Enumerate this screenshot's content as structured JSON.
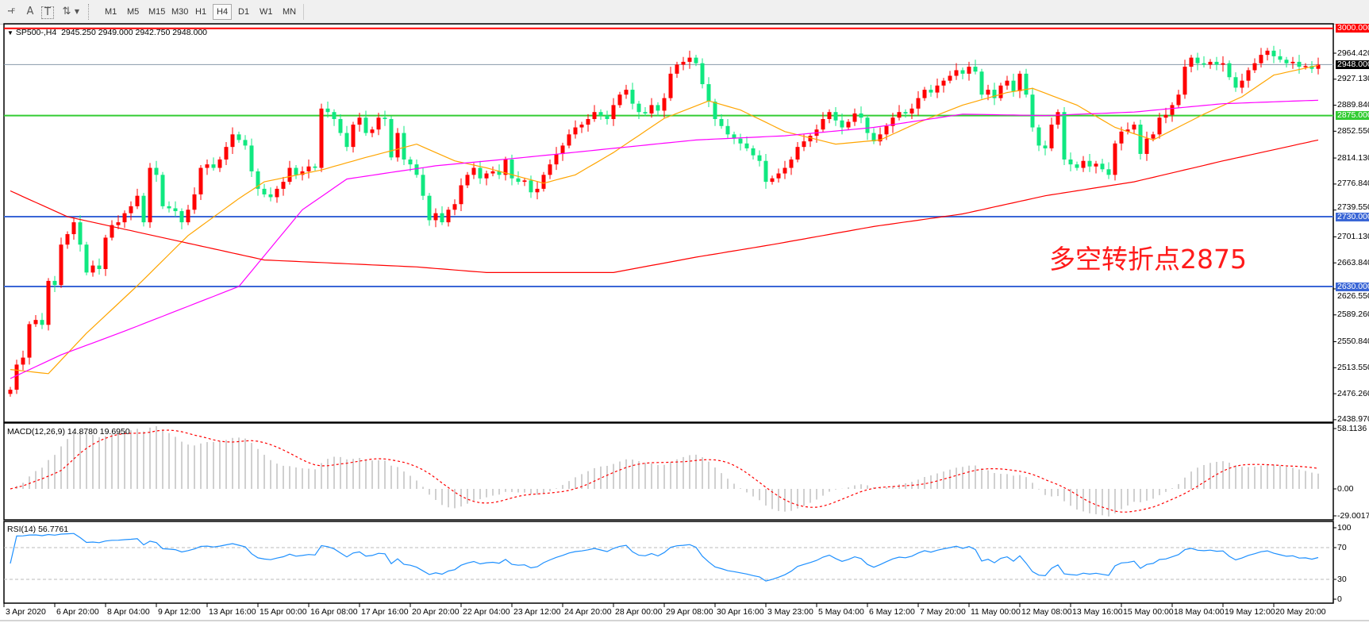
{
  "toolbar": {
    "icons": [
      "grid-fibo-icon",
      "text-icon",
      "text-label-icon",
      "arrows-icon"
    ],
    "text_icon_glyph": "A",
    "text_label_glyph": "T",
    "timeframes": [
      "M1",
      "M5",
      "M15",
      "M30",
      "H1",
      "H4",
      "D1",
      "W1",
      "MN"
    ],
    "selected_timeframe": "H4"
  },
  "chart": {
    "symbol": "SP500-,H4",
    "ohlc_readout": "2945.250 2949.000 2942.750 2948.000",
    "annotation": "多空转折点2875",
    "annotation_color": "#ff1a1a",
    "bull_color": "#ff0000",
    "bear_color": "#10e880"
  },
  "chart_data": {
    "type": "candlestick",
    "timeframe": "H4",
    "x_tick_labels": [
      "3 Apr 2020",
      "6 Apr 20:00",
      "8 Apr 04:00",
      "9 Apr 12:00",
      "13 Apr 16:00",
      "15 Apr 00:00",
      "16 Apr 08:00",
      "17 Apr 16:00",
      "20 Apr 20:00",
      "22 Apr 04:00",
      "23 Apr 12:00",
      "24 Apr 20:00",
      "28 Apr 00:00",
      "29 Apr 08:00",
      "30 Apr 16:00",
      "3 May 23:00",
      "5 May 04:00",
      "6 May 12:00",
      "7 May 20:00",
      "11 May 00:00",
      "12 May 08:00",
      "13 May 16:00",
      "15 May 00:00",
      "18 May 04:00",
      "19 May 12:00",
      "20 May 20:00"
    ],
    "bars_per_x_tick": 8,
    "y_tick_labels": [
      "2964.420",
      "2927.130",
      "2889.840",
      "2852.550",
      "2814.130",
      "2776.840",
      "2739.550",
      "2701.130",
      "2663.840",
      "2626.550",
      "2589.260",
      "2550.840",
      "2513.550",
      "2476.260",
      "2438.970"
    ],
    "ylim": [
      2438.97,
      3000
    ],
    "first_open": 2476,
    "close": [
      2482,
      2518,
      2528,
      2576,
      2582,
      2575,
      2638,
      2632,
      2690,
      2705,
      2722,
      2690,
      2650,
      2660,
      2655,
      2700,
      2718,
      2722,
      2735,
      2745,
      2760,
      2722,
      2800,
      2790,
      2745,
      2742,
      2738,
      2722,
      2740,
      2762,
      2800,
      2805,
      2800,
      2812,
      2830,
      2848,
      2840,
      2832,
      2795,
      2770,
      2762,
      2758,
      2770,
      2780,
      2800,
      2790,
      2795,
      2802,
      2800,
      2885,
      2880,
      2870,
      2850,
      2830,
      2862,
      2872,
      2850,
      2855,
      2872,
      2870,
      2815,
      2850,
      2812,
      2805,
      2790,
      2760,
      2725,
      2735,
      2722,
      2740,
      2748,
      2775,
      2790,
      2800,
      2785,
      2792,
      2795,
      2790,
      2812,
      2785,
      2780,
      2782,
      2765,
      2770,
      2790,
      2805,
      2820,
      2832,
      2848,
      2858,
      2862,
      2870,
      2880,
      2875,
      2870,
      2890,
      2905,
      2912,
      2892,
      2880,
      2878,
      2890,
      2882,
      2900,
      2935,
      2948,
      2952,
      2958,
      2950,
      2920,
      2895,
      2870,
      2860,
      2848,
      2842,
      2835,
      2828,
      2818,
      2810,
      2780,
      2785,
      2792,
      2800,
      2812,
      2830,
      2838,
      2846,
      2855,
      2870,
      2880,
      2868,
      2858,
      2866,
      2878,
      2872,
      2850,
      2838,
      2848,
      2860,
      2872,
      2880,
      2878,
      2885,
      2900,
      2912,
      2908,
      2918,
      2925,
      2932,
      2940,
      2935,
      2945,
      2938,
      2905,
      2912,
      2900,
      2918,
      2925,
      2910,
      2935,
      2905,
      2858,
      2832,
      2828,
      2862,
      2880,
      2812,
      2805,
      2800,
      2810,
      2802,
      2806,
      2798,
      2790,
      2835,
      2852,
      2855,
      2862,
      2820,
      2842,
      2848,
      2872,
      2876,
      2890,
      2905,
      2945,
      2958,
      2950,
      2948,
      2952,
      2948,
      2950,
      2930,
      2915,
      2925,
      2940,
      2950,
      2962,
      2968,
      2960,
      2955,
      2950,
      2952,
      2945,
      2946,
      2942,
      2948
    ],
    "moving_averages": [
      {
        "color": "#ffa500",
        "points": [
          [
            0,
            2511
          ],
          [
            6,
            2505
          ],
          [
            12,
            2563
          ],
          [
            20,
            2631
          ],
          [
            28,
            2703
          ],
          [
            36,
            2756
          ],
          [
            40,
            2780
          ],
          [
            49,
            2797
          ],
          [
            56,
            2815
          ],
          [
            64,
            2834
          ],
          [
            70,
            2810
          ],
          [
            75,
            2800
          ],
          [
            84,
            2778
          ],
          [
            89,
            2790
          ],
          [
            95,
            2822
          ],
          [
            103,
            2871
          ],
          [
            110,
            2896
          ],
          [
            115,
            2883
          ],
          [
            122,
            2852
          ],
          [
            130,
            2834
          ],
          [
            137,
            2840
          ],
          [
            143,
            2865
          ],
          [
            150,
            2890
          ],
          [
            157,
            2908
          ],
          [
            161,
            2914
          ],
          [
            168,
            2890
          ],
          [
            174,
            2858
          ],
          [
            180,
            2840
          ],
          [
            188,
            2877
          ],
          [
            194,
            2902
          ],
          [
            199,
            2933
          ],
          [
            206,
            2947
          ]
        ]
      },
      {
        "color": "#ff00ff",
        "points": [
          [
            0,
            2498
          ],
          [
            8,
            2532
          ],
          [
            18,
            2566
          ],
          [
            36,
            2630
          ],
          [
            46,
            2740
          ],
          [
            53,
            2784
          ],
          [
            67,
            2803
          ],
          [
            81,
            2815
          ],
          [
            95,
            2828
          ],
          [
            108,
            2840
          ],
          [
            122,
            2846
          ],
          [
            136,
            2858
          ],
          [
            150,
            2877
          ],
          [
            163,
            2875
          ],
          [
            177,
            2880
          ],
          [
            191,
            2892
          ],
          [
            206,
            2897
          ]
        ]
      },
      {
        "color": "#ff0000",
        "points": [
          [
            0,
            2767
          ],
          [
            9,
            2730
          ],
          [
            40,
            2668
          ],
          [
            64,
            2658
          ],
          [
            75,
            2650
          ],
          [
            95,
            2650
          ],
          [
            108,
            2672
          ],
          [
            120,
            2690
          ],
          [
            136,
            2716
          ],
          [
            150,
            2734
          ],
          [
            163,
            2760
          ],
          [
            177,
            2780
          ],
          [
            191,
            2810
          ],
          [
            206,
            2840
          ]
        ]
      }
    ],
    "horizontal_lines": [
      {
        "price": 3000,
        "label": "3000.000",
        "color": "#ff0000"
      },
      {
        "price": 2875,
        "label": "2875.000",
        "color": "#33cc33"
      },
      {
        "price": 2730,
        "label": "2730.000",
        "color": "#3a66d6"
      },
      {
        "price": 2630,
        "label": "2630.000",
        "color": "#3a66d6"
      }
    ],
    "current_price": {
      "price": 2948,
      "label": "2948.000",
      "color": "#8899aa"
    },
    "macd": {
      "title": "MACD(12,26,9) 14.8780 19.6950",
      "ylim": [
        -29.0017,
        58.1136
      ],
      "y_tick_labels": [
        "58.1136",
        "0.00",
        "-29.0017"
      ],
      "histogram_color": "#c0c0c0",
      "signal_color": "#ff0000"
    },
    "rsi": {
      "title": "RSI(14) 56.7761",
      "ylim": [
        0,
        100
      ],
      "levels": [
        70,
        30
      ],
      "y_tick_labels": [
        "100",
        "70",
        "30",
        "0"
      ],
      "color": "#1e90ff"
    }
  }
}
